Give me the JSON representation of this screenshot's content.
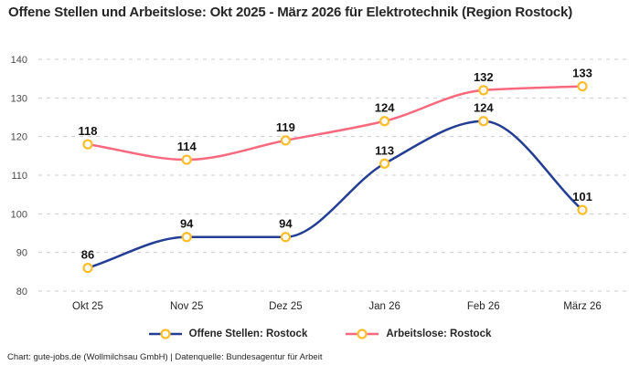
{
  "chart_data": {
    "type": "line",
    "title": "Offene Stellen und Arbeitslose: Okt 2025 - März 2026 für Elektrotechnik (Region Rostock)",
    "categories": [
      "Okt 25",
      "Nov 25",
      "Dez 25",
      "Jan 26",
      "Feb 26",
      "März 26"
    ],
    "series": [
      {
        "name": "Offene Stellen: Rostock",
        "values": [
          86,
          94,
          94,
          113,
          124,
          101
        ],
        "color": "#243e94"
      },
      {
        "name": "Arbeitslose: Rostock",
        "values": [
          118,
          114,
          119,
          124,
          132,
          133
        ],
        "color": "#f8697f"
      }
    ],
    "marker_stroke_color": "#fcbe2d",
    "marker_fill_color": "#ffffff",
    "ylim": [
      80,
      140
    ],
    "yticks": [
      80,
      90,
      100,
      110,
      120,
      130,
      140
    ],
    "grid": "horizontal-dashed",
    "grid_color": "#cccccc",
    "tick_label_color": "#4a4a4a",
    "xtick_label_color": "#262626",
    "data_label_color": "#141414",
    "curve": "monotone",
    "legend_position": "bottom-center",
    "data_labels_shown": true
  },
  "footer": {
    "credit": "Chart: gute-jobs.de (Wollmilchsau GmbH) | Datenquelle: Bundesagentur für Arbeit"
  }
}
